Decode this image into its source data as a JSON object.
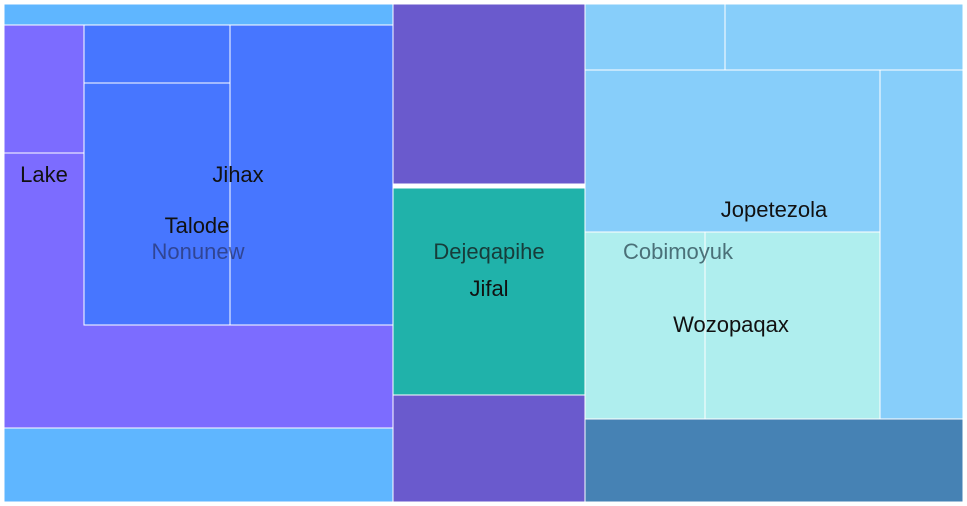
{
  "chart_data": {
    "type": "treemap",
    "colors": {
      "sky": "#5fb6ff",
      "purple": "#7c6cff",
      "blue": "#4776ff",
      "indigo": "#6a5acd",
      "teal": "#20b2aa",
      "light_sky": "#87cefa",
      "pale_turquoise": "#afeeee",
      "steel_blue": "#4682b4"
    },
    "groups": [
      {
        "name": "Nonunew",
        "children": [
          {
            "name": "",
            "value": 7.5,
            "color_key": "sky"
          },
          {
            "name": "Lake",
            "value": 8.8,
            "color_key": "purple"
          },
          {
            "name": "",
            "value": 23.5,
            "color_key": "purple"
          },
          {
            "name": "",
            "value": 4.2,
            "color_key": "blue"
          },
          {
            "name": "Talode",
            "value": 17.2,
            "color_key": "blue"
          },
          {
            "name": "Jihax",
            "value": 23.7,
            "color_key": "blue"
          },
          {
            "name": "",
            "value": 22.3,
            "color_key": "sky"
          }
        ]
      },
      {
        "name": "Dejeqapihe",
        "children": [
          {
            "name": "",
            "value": 27.1,
            "color_key": "indigo"
          },
          {
            "name": "Jifal",
            "value": 31.1,
            "color_key": "teal"
          },
          {
            "name": "",
            "value": 16.0,
            "color_key": "indigo"
          }
        ]
      },
      {
        "name": "Cobimoyuk",
        "children": [
          {
            "name": "",
            "value": 7.3,
            "color_key": "light_sky"
          },
          {
            "name": "",
            "value": 18.4,
            "color_key": "light_sky"
          },
          {
            "name": "Jopetezola",
            "value": 24.1,
            "color_key": "light_sky"
          },
          {
            "name": "",
            "value": 22.9,
            "color_key": "light_sky"
          },
          {
            "name": "",
            "value": 9.3,
            "color_key": "pale_turquoise"
          },
          {
            "name": "Wozopaqax",
            "value": 14.4,
            "color_key": "pale_turquoise"
          },
          {
            "name": "",
            "value": 14.4,
            "color_key": "steel_blue"
          }
        ]
      }
    ]
  }
}
